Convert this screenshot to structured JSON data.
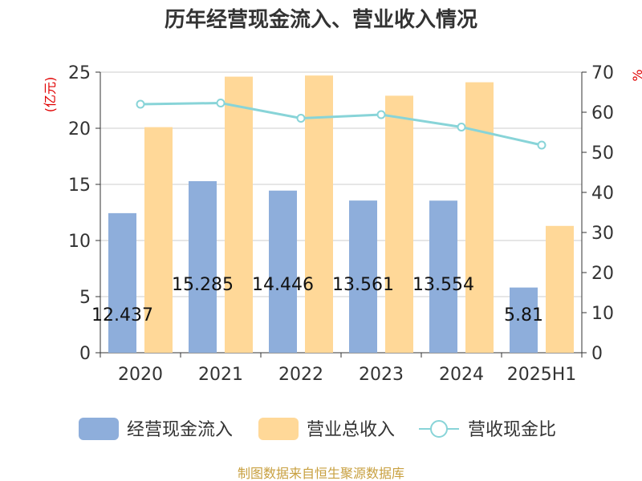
{
  "chart_data": {
    "type": "bar",
    "title": "历年经营现金流入、营业收入情况",
    "left_unit": "(亿元)",
    "right_unit": "%",
    "categories": [
      "2020",
      "2021",
      "2022",
      "2023",
      "2024",
      "2025H1"
    ],
    "ylim": [
      0,
      25
    ],
    "y_ticks": [
      0,
      5,
      10,
      15,
      20,
      25
    ],
    "y2lim": [
      0,
      70
    ],
    "y2_ticks": [
      0,
      10,
      20,
      30,
      40,
      50,
      60,
      70
    ],
    "grid": true,
    "legend_position": "bottom",
    "series": [
      {
        "name": "经营现金流入",
        "type": "bar",
        "axis": "left",
        "color": "#8eaedb",
        "values": [
          12.437,
          15.285,
          14.446,
          13.561,
          13.554,
          5.81
        ],
        "labels": [
          "12.437",
          "15.285",
          "14.446",
          "13.561",
          "13.554",
          "5.81"
        ]
      },
      {
        "name": "营业总收入",
        "type": "bar",
        "axis": "left",
        "color": "#ffd898",
        "values": [
          20.1,
          24.6,
          24.7,
          22.9,
          24.1,
          11.3
        ]
      },
      {
        "name": "营收现金比",
        "type": "line",
        "axis": "right",
        "color": "#88d4d8",
        "values": [
          62,
          62.3,
          58.5,
          59.4,
          56.3,
          51.8
        ]
      }
    ]
  },
  "source_text": "制图数据来自恒生聚源数据库"
}
